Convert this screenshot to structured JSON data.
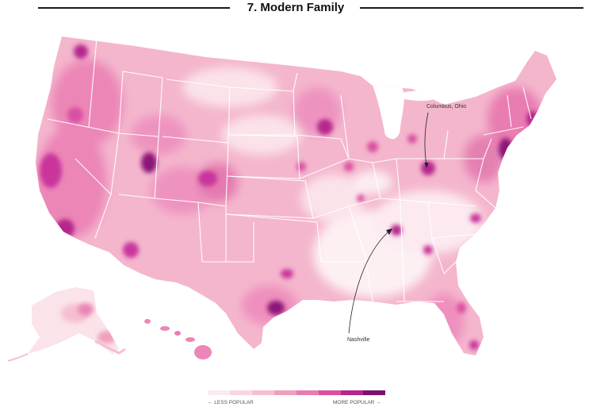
{
  "title": "7. Modern Family",
  "annotations": {
    "columbus": "Columbus, Ohio",
    "nashville": "Nashville"
  },
  "legend": {
    "low_label": "← LESS POPULAR",
    "high_label": "MORE POPULAR →",
    "colors": [
      "#fcebee",
      "#f9d6df",
      "#f6bfcf",
      "#f0a0bd",
      "#e97cb1",
      "#d94fa1",
      "#b5268e",
      "#7d0f6e"
    ]
  },
  "map_colors": {
    "base_light": "#fbe3ea",
    "base_mid": "#f3a8c6",
    "base_pink": "#ec86b7",
    "hot": "#c9359b",
    "very_hot": "#8d1478",
    "border": "#ffffff"
  }
}
